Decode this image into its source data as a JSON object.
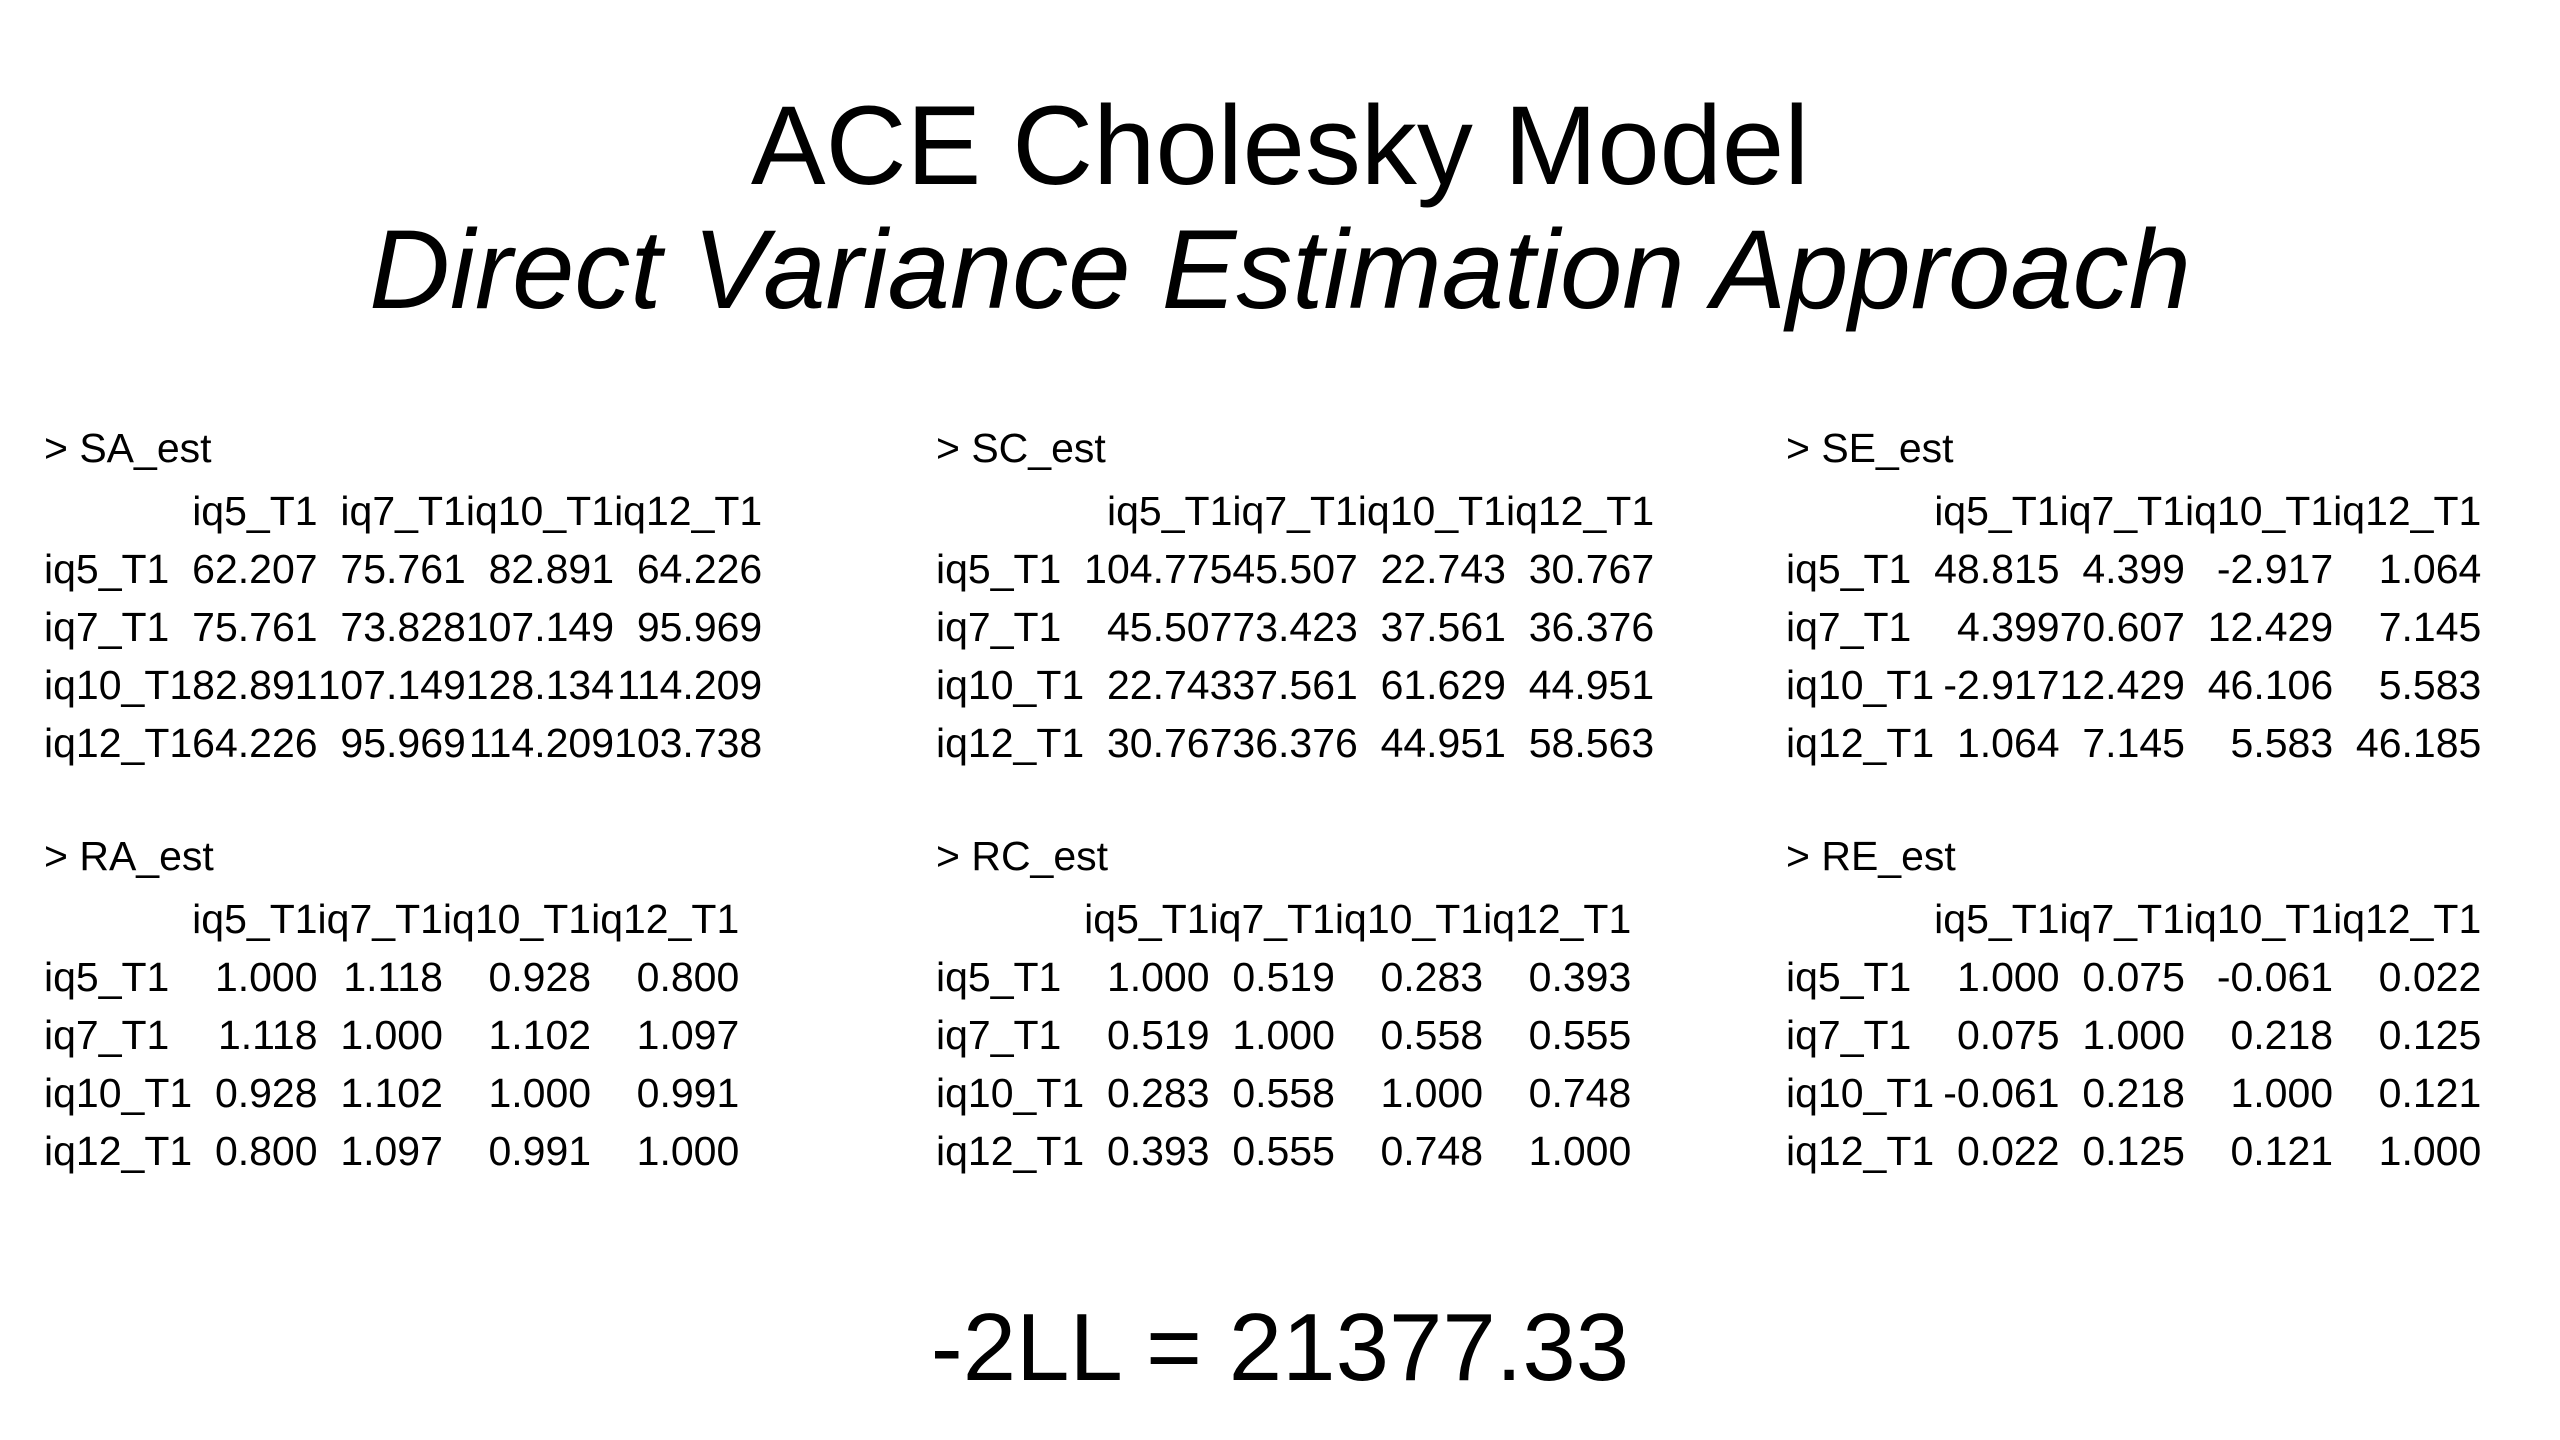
{
  "title": "ACE Cholesky Model",
  "subtitle": "Direct Variance Estimation Approach",
  "columns": [
    "iq5_T1",
    "iq7_T1",
    "iq10_T1",
    "iq12_T1"
  ],
  "matrices": [
    {
      "key": "sa",
      "label": "> SA_est",
      "rows": [
        {
          "name": "iq5_T1",
          "values": [
            "62.207",
            "75.761",
            "82.891",
            "64.226"
          ]
        },
        {
          "name": "iq7_T1",
          "values": [
            "75.761",
            "73.828",
            "107.149",
            "95.969"
          ]
        },
        {
          "name": "iq10_T1",
          "values": [
            "82.891",
            "107.149",
            "128.134",
            "114.209"
          ]
        },
        {
          "name": "iq12_T1",
          "values": [
            "64.226",
            "95.969",
            "114.209",
            "103.738"
          ]
        }
      ]
    },
    {
      "key": "sc",
      "label": "> SC_est",
      "rows": [
        {
          "name": "iq5_T1",
          "values": [
            "104.775",
            "45.507",
            "22.743",
            "30.767"
          ]
        },
        {
          "name": "iq7_T1",
          "values": [
            "45.507",
            "73.423",
            "37.561",
            "36.376"
          ]
        },
        {
          "name": "iq10_T1",
          "values": [
            "22.743",
            "37.561",
            "61.629",
            "44.951"
          ]
        },
        {
          "name": "iq12_T1",
          "values": [
            "30.767",
            "36.376",
            "44.951",
            "58.563"
          ]
        }
      ]
    },
    {
      "key": "se",
      "label": "> SE_est",
      "rows": [
        {
          "name": "iq5_T1",
          "values": [
            "48.815",
            "4.399",
            "-2.917",
            "1.064"
          ]
        },
        {
          "name": "iq7_T1",
          "values": [
            "4.399",
            "70.607",
            "12.429",
            "7.145"
          ]
        },
        {
          "name": "iq10_T1",
          "values": [
            "-2.917",
            "12.429",
            "46.106",
            "5.583"
          ]
        },
        {
          "name": "iq12_T1",
          "values": [
            "1.064",
            "7.145",
            "5.583",
            "46.185"
          ]
        }
      ]
    },
    {
      "key": "ra",
      "label": "> RA_est",
      "rows": [
        {
          "name": "iq5_T1",
          "values": [
            "1.000",
            "1.118",
            "0.928",
            "0.800"
          ]
        },
        {
          "name": "iq7_T1",
          "values": [
            "1.118",
            "1.000",
            "1.102",
            "1.097"
          ]
        },
        {
          "name": "iq10_T1",
          "values": [
            "0.928",
            "1.102",
            "1.000",
            "0.991"
          ]
        },
        {
          "name": "iq12_T1",
          "values": [
            "0.800",
            "1.097",
            "0.991",
            "1.000"
          ]
        }
      ]
    },
    {
      "key": "rc",
      "label": "> RC_est",
      "rows": [
        {
          "name": "iq5_T1",
          "values": [
            "1.000",
            "0.519",
            "0.283",
            "0.393"
          ]
        },
        {
          "name": "iq7_T1",
          "values": [
            "0.519",
            "1.000",
            "0.558",
            "0.555"
          ]
        },
        {
          "name": "iq10_T1",
          "values": [
            "0.283",
            "0.558",
            "1.000",
            "0.748"
          ]
        },
        {
          "name": "iq12_T1",
          "values": [
            "0.393",
            "0.555",
            "0.748",
            "1.000"
          ]
        }
      ]
    },
    {
      "key": "re",
      "label": "> RE_est",
      "rows": [
        {
          "name": "iq5_T1",
          "values": [
            "1.000",
            "0.075",
            "-0.061",
            "0.022"
          ]
        },
        {
          "name": "iq7_T1",
          "values": [
            "0.075",
            "1.000",
            "0.218",
            "0.125"
          ]
        },
        {
          "name": "iq10_T1",
          "values": [
            "-0.061",
            "0.218",
            "1.000",
            "0.121"
          ]
        },
        {
          "name": "iq12_T1",
          "values": [
            "0.022",
            "0.125",
            "0.121",
            "1.000"
          ]
        }
      ]
    }
  ],
  "footer": "-2LL = 21377.33"
}
